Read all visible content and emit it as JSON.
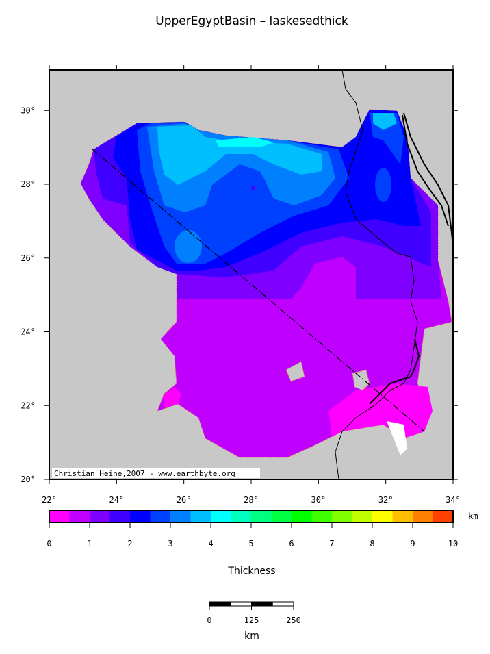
{
  "title": "UpperEgyptBasin – laskesedthick",
  "map": {
    "xlim": [
      22,
      34
    ],
    "ylim": [
      20,
      31.1
    ],
    "xticks": [
      {
        "value": 22,
        "label": "22°"
      },
      {
        "value": 24,
        "label": "24°"
      },
      {
        "value": 26,
        "label": "26°"
      },
      {
        "value": 28,
        "label": "28°"
      },
      {
        "value": 30,
        "label": "30°"
      },
      {
        "value": 32,
        "label": "32°"
      },
      {
        "value": 34,
        "label": "34°"
      }
    ],
    "yticks": [
      {
        "value": 20,
        "label": "20°"
      },
      {
        "value": 22,
        "label": "22°"
      },
      {
        "value": 24,
        "label": "24°"
      },
      {
        "value": 26,
        "label": "26°"
      },
      {
        "value": 28,
        "label": "28°"
      },
      {
        "value": 30,
        "label": "30°"
      }
    ],
    "credit": "Christian Heine,2007 - www.earthbyte.org"
  },
  "colorbar": {
    "label": "Thickness",
    "unit": "km",
    "lim": [
      0,
      10
    ],
    "ticks": [
      0,
      1,
      2,
      3,
      4,
      5,
      6,
      7,
      8,
      9,
      10
    ],
    "colors": [
      "#ff00ff",
      "#bf00ff",
      "#8000ff",
      "#4000ff",
      "#0000ff",
      "#0040ff",
      "#0080ff",
      "#00bfff",
      "#00ffff",
      "#00ffbf",
      "#00ff80",
      "#00ff40",
      "#00ff00",
      "#40ff00",
      "#80ff00",
      "#bfff00",
      "#ffff00",
      "#ffbf00",
      "#ff8000",
      "#ff4000"
    ]
  },
  "scalebar": {
    "ticks": [
      0,
      125,
      250
    ],
    "unit": "km"
  }
}
